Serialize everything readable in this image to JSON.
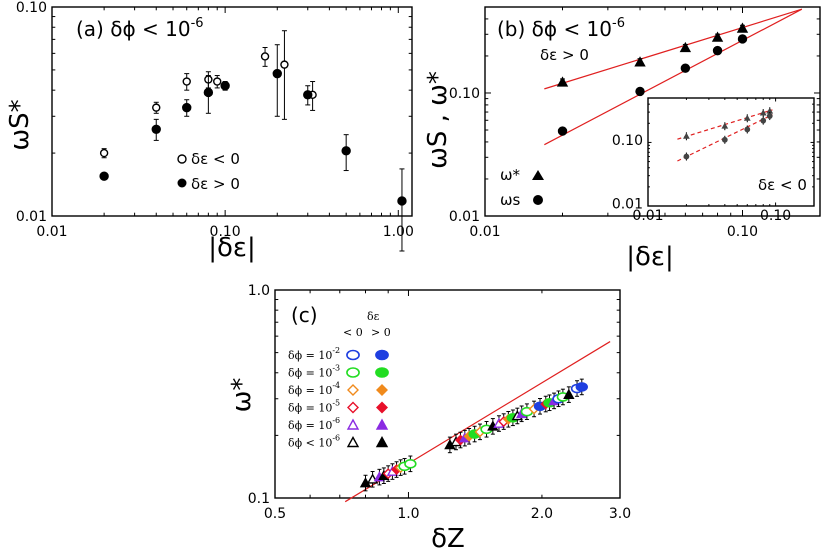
{
  "chart_data": [
    {
      "type": "scatter",
      "panel": "a",
      "title": "(a) δϕ < 10",
      "title_sup": "-6",
      "xlabel": "|δε|",
      "ylabel": "ωS*",
      "xscale": "log",
      "yscale": "log",
      "xlim": [
        0.01,
        1.2
      ],
      "ylim": [
        0.01,
        0.1
      ],
      "xticks": [
        "0.01",
        "0.10",
        "1.00"
      ],
      "yticks": [
        "0.01",
        "0.10"
      ],
      "legend": [
        "δε < 0",
        "δε > 0"
      ],
      "series": [
        {
          "name": "δε < 0",
          "marker": "open-circle",
          "x": [
            0.02,
            0.04,
            0.06,
            0.08,
            0.09,
            0.17,
            0.22,
            0.32
          ],
          "y": [
            0.02,
            0.033,
            0.044,
            0.045,
            0.044,
            0.058,
            0.053,
            0.038
          ],
          "err": [
            0.001,
            0.002,
            0.004,
            0.004,
            0.003,
            0.006,
            0.024,
            0.006
          ]
        },
        {
          "name": "δε > 0",
          "marker": "filled-circle",
          "x": [
            0.02,
            0.04,
            0.06,
            0.08,
            0.1,
            0.2,
            0.3,
            0.5,
            1.05
          ],
          "y": [
            0.0155,
            0.026,
            0.033,
            0.039,
            0.042,
            0.048,
            0.038,
            0.0205,
            0.0118
          ],
          "err": [
            0.0005,
            0.003,
            0.003,
            0.008,
            0.002,
            0.018,
            0.004,
            0.004,
            0.005
          ]
        }
      ]
    },
    {
      "type": "scatter",
      "panel": "b",
      "title": "(b) δϕ < 10",
      "title_sup": "-6",
      "subtitle": "δε > 0",
      "xlabel": "|δε|",
      "ylabel": "ωS , ω*",
      "xscale": "log",
      "yscale": "log",
      "xlim": [
        0.01,
        0.2
      ],
      "ylim": [
        0.01,
        0.5
      ],
      "xticks": [
        "0.01",
        "0.10"
      ],
      "yticks": [
        "0.01",
        "0.10"
      ],
      "legend": [
        "ω*",
        "ωs"
      ],
      "series": [
        {
          "name": "ω*",
          "marker": "filled-triangle",
          "x": [
            0.02,
            0.04,
            0.06,
            0.08,
            0.1
          ],
          "y": [
            0.122,
            0.178,
            0.233,
            0.283,
            0.335
          ],
          "err": [
            0.008,
            0.012,
            0.015,
            0.018,
            0.02
          ]
        },
        {
          "name": "ωs",
          "marker": "filled-circle",
          "x": [
            0.02,
            0.04,
            0.06,
            0.08,
            0.1
          ],
          "y": [
            0.049,
            0.103,
            0.159,
            0.221,
            0.275
          ],
          "err": [
            0.002,
            0.004,
            0.006,
            0.008,
            0.01
          ]
        }
      ],
      "fits": [
        {
          "name": "ω* fit",
          "x": [
            0.017,
            0.17
          ],
          "y": [
            0.108,
            0.48
          ]
        },
        {
          "name": "ωs fit",
          "x": [
            0.017,
            0.17
          ],
          "y": [
            0.038,
            0.48
          ]
        }
      ],
      "inset": {
        "label": "δε < 0",
        "xticks": [
          "0.01",
          "0.10"
        ],
        "yticks": [
          "0.01",
          "0.10"
        ],
        "xlim": [
          0.01,
          0.2
        ],
        "ylim": [
          0.01,
          0.5
        ],
        "series": [
          {
            "name": "ω*",
            "marker": "filled-triangle",
            "x": [
              0.02,
              0.04,
              0.06,
              0.08,
              0.09
            ],
            "y": [
              0.125,
              0.18,
              0.24,
              0.29,
              0.31
            ]
          },
          {
            "name": "ωs",
            "marker": "filled-circle",
            "x": [
              0.02,
              0.04,
              0.06,
              0.08,
              0.09
            ],
            "y": [
              0.06,
              0.11,
              0.16,
              0.22,
              0.26
            ]
          }
        ]
      }
    },
    {
      "type": "scatter",
      "panel": "c",
      "title": "(c)",
      "xlabel": "δZ",
      "ylabel": "ω*",
      "xscale": "log",
      "yscale": "log",
      "xlim": [
        0.5,
        3.0
      ],
      "ylim": [
        0.1,
        1.0
      ],
      "xticks": [
        "0.5",
        "1.0",
        "2.0",
        "3.0"
      ],
      "yticks": [
        "0.1",
        "1.0"
      ],
      "legend_header": [
        "δε",
        "< 0",
        "> 0"
      ],
      "legend": [
        {
          "label": "δϕ = 10",
          "sup": "-2",
          "color": "#1f3fe0",
          "marker": "ellipse"
        },
        {
          "label": "δϕ = 10",
          "sup": "-3",
          "color": "#22dd22",
          "marker": "ellipse"
        },
        {
          "label": "δϕ = 10",
          "sup": "-4",
          "color": "#f08a1c",
          "marker": "diamond"
        },
        {
          "label": "δϕ = 10",
          "sup": "-5",
          "color": "#e8102a",
          "marker": "diamond"
        },
        {
          "label": "δϕ = 10",
          "sup": "-6",
          "color": "#8a2be2",
          "marker": "triangle"
        },
        {
          "label": "δϕ < 10",
          "sup": "-6",
          "color": "#000000",
          "marker": "triangle"
        }
      ],
      "fit": {
        "x": [
          0.72,
          2.85
        ],
        "y": [
          0.096,
          0.565
        ]
      },
      "points": [
        {
          "x": 0.8,
          "y": 0.118,
          "c": "#000000",
          "m": "triangle",
          "f": true
        },
        {
          "x": 0.83,
          "y": 0.123,
          "c": "#000000",
          "m": "triangle",
          "f": false
        },
        {
          "x": 0.86,
          "y": 0.126,
          "c": "#8a2be2",
          "m": "triangle",
          "f": true
        },
        {
          "x": 0.88,
          "y": 0.128,
          "c": "#000000",
          "m": "triangle",
          "f": true
        },
        {
          "x": 0.9,
          "y": 0.131,
          "c": "#e8102a",
          "m": "diamond",
          "f": false
        },
        {
          "x": 0.92,
          "y": 0.134,
          "c": "#8a2be2",
          "m": "triangle",
          "f": false
        },
        {
          "x": 0.94,
          "y": 0.137,
          "c": "#e8102a",
          "m": "diamond",
          "f": true
        },
        {
          "x": 0.96,
          "y": 0.14,
          "c": "#f08a1c",
          "m": "diamond",
          "f": false
        },
        {
          "x": 0.98,
          "y": 0.142,
          "c": "#22dd22",
          "m": "ellipse",
          "f": false
        },
        {
          "x": 1.01,
          "y": 0.146,
          "c": "#22dd22",
          "m": "ellipse",
          "f": false
        },
        {
          "x": 1.24,
          "y": 0.18,
          "c": "#000000",
          "m": "triangle",
          "f": true
        },
        {
          "x": 1.28,
          "y": 0.186,
          "c": "#000000",
          "m": "triangle",
          "f": false
        },
        {
          "x": 1.31,
          "y": 0.19,
          "c": "#e8102a",
          "m": "diamond",
          "f": true
        },
        {
          "x": 1.34,
          "y": 0.194,
          "c": "#8a2be2",
          "m": "triangle",
          "f": true
        },
        {
          "x": 1.37,
          "y": 0.198,
          "c": "#f08a1c",
          "m": "diamond",
          "f": true
        },
        {
          "x": 1.41,
          "y": 0.203,
          "c": "#22dd22",
          "m": "ellipse",
          "f": true
        },
        {
          "x": 1.45,
          "y": 0.208,
          "c": "#f08a1c",
          "m": "diamond",
          "f": false
        },
        {
          "x": 1.5,
          "y": 0.214,
          "c": "#22dd22",
          "m": "ellipse",
          "f": false
        },
        {
          "x": 1.55,
          "y": 0.221,
          "c": "#000000",
          "m": "triangle",
          "f": true
        },
        {
          "x": 1.6,
          "y": 0.228,
          "c": "#8a2be2",
          "m": "triangle",
          "f": false
        },
        {
          "x": 1.64,
          "y": 0.233,
          "c": "#e8102a",
          "m": "diamond",
          "f": false
        },
        {
          "x": 1.68,
          "y": 0.239,
          "c": "#f08a1c",
          "m": "diamond",
          "f": true
        },
        {
          "x": 1.72,
          "y": 0.243,
          "c": "#22dd22",
          "m": "ellipse",
          "f": true
        },
        {
          "x": 1.76,
          "y": 0.248,
          "c": "#000000",
          "m": "triangle",
          "f": false
        },
        {
          "x": 1.8,
          "y": 0.254,
          "c": "#8a2be2",
          "m": "triangle",
          "f": true
        },
        {
          "x": 1.85,
          "y": 0.26,
          "c": "#22dd22",
          "m": "ellipse",
          "f": false
        },
        {
          "x": 1.92,
          "y": 0.268,
          "c": "#f08a1c",
          "m": "diamond",
          "f": false
        },
        {
          "x": 1.98,
          "y": 0.276,
          "c": "#1f3fe0",
          "m": "ellipse",
          "f": true
        },
        {
          "x": 2.04,
          "y": 0.283,
          "c": "#e8102a",
          "m": "diamond",
          "f": true
        },
        {
          "x": 2.08,
          "y": 0.287,
          "c": "#22dd22",
          "m": "ellipse",
          "f": true
        },
        {
          "x": 2.13,
          "y": 0.293,
          "c": "#8a2be2",
          "m": "triangle",
          "f": true
        },
        {
          "x": 2.18,
          "y": 0.3,
          "c": "#1f3fe0",
          "m": "ellipse",
          "f": false
        },
        {
          "x": 2.23,
          "y": 0.306,
          "c": "#22dd22",
          "m": "ellipse",
          "f": false
        },
        {
          "x": 2.3,
          "y": 0.314,
          "c": "#000000",
          "m": "triangle",
          "f": true
        },
        {
          "x": 2.4,
          "y": 0.336,
          "c": "#1f3fe0",
          "m": "ellipse",
          "f": false
        },
        {
          "x": 2.46,
          "y": 0.342,
          "c": "#1f3fe0",
          "m": "ellipse",
          "f": true
        }
      ]
    }
  ]
}
